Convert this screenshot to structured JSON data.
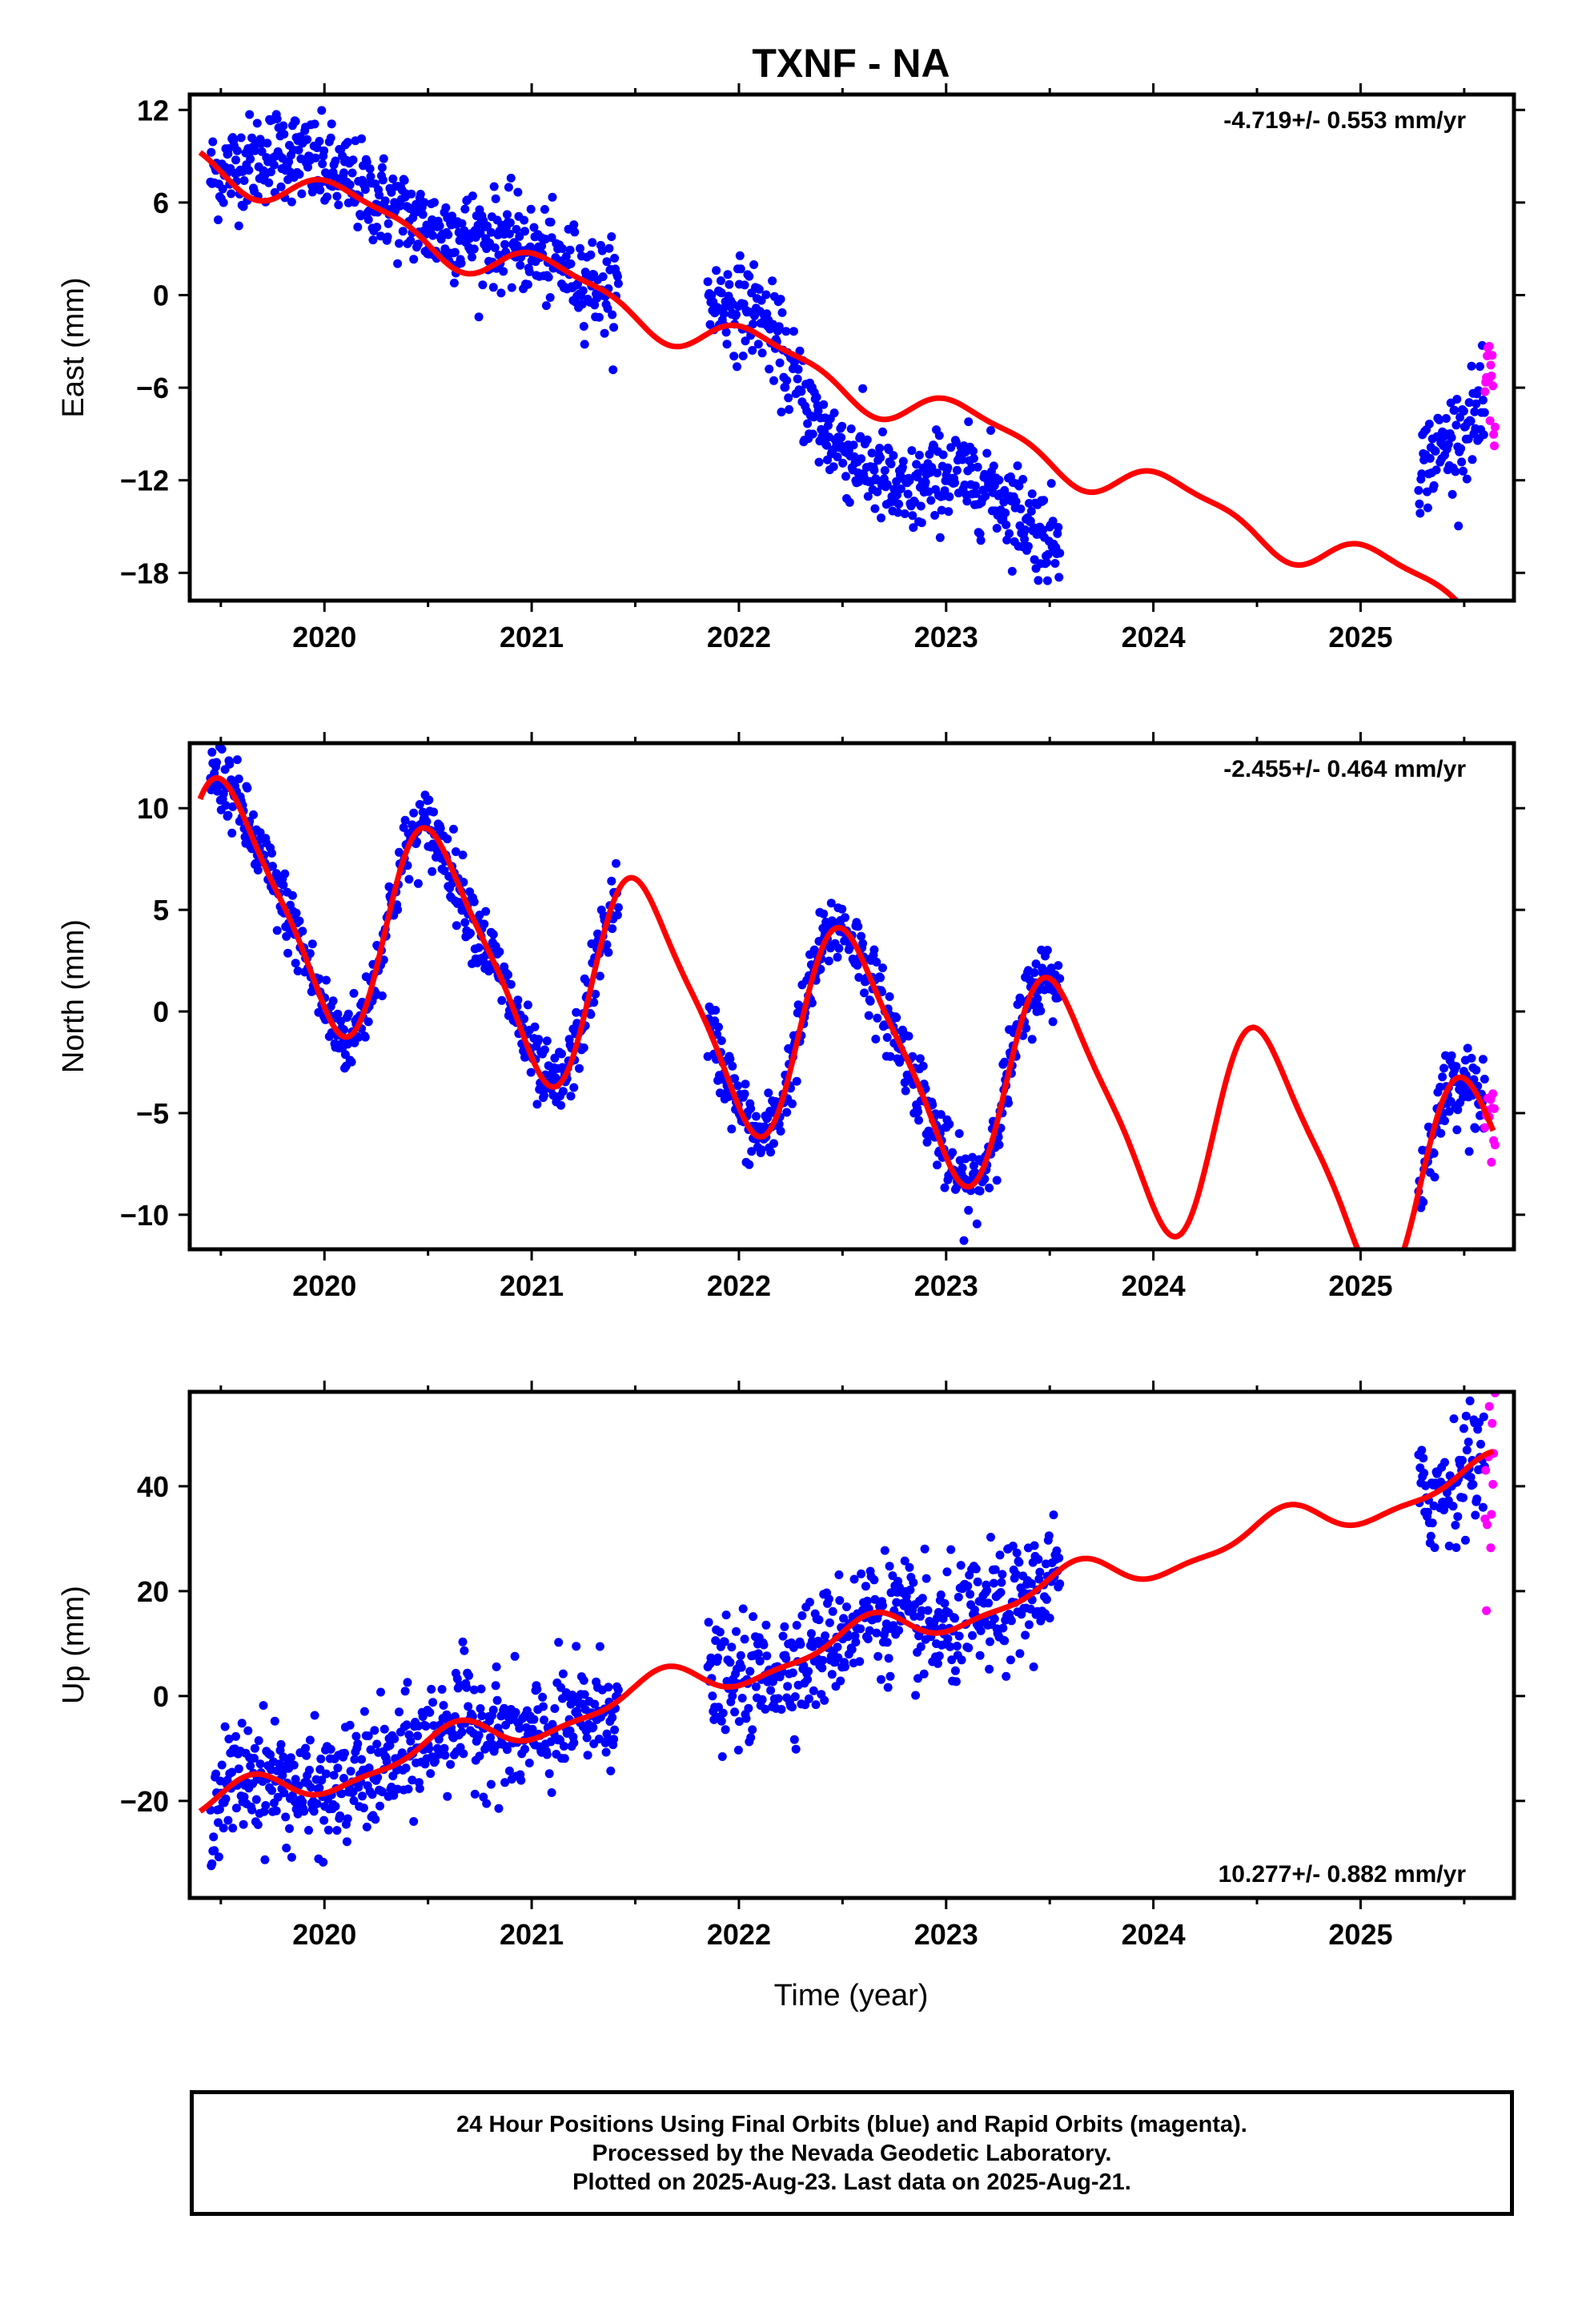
{
  "chart_data": [
    {
      "type": "scatter",
      "title": "TXNF - NA",
      "ylabel": "East (mm)",
      "xlabel": "",
      "rate_text": "-4.719+/- 0.553 mm/yr",
      "xlim": [
        2019.35,
        2025.74
      ],
      "ylim": [
        -19.8,
        13
      ],
      "yticks": [
        12,
        6,
        0,
        -6,
        -12,
        -18
      ],
      "xticks": [
        2020,
        2021,
        2022,
        2023,
        2024,
        2025
      ],
      "rate_mm_per_yr": -4.719,
      "series": [
        {
          "role": "final_orbits",
          "color": "#0000ff",
          "trend": [
            [
              2019.45,
              7.8
            ],
            [
              2019.8,
              9.4
            ],
            [
              2020.1,
              7.5
            ],
            [
              2020.5,
              4.3
            ],
            [
              2020.9,
              3.5
            ],
            [
              2021.4,
              0.2
            ],
            [
              2021.85,
              -0.3
            ],
            [
              2022.1,
              -1.0
            ],
            [
              2022.4,
              -8.8
            ],
            [
              2022.8,
              -13.2
            ],
            [
              2023.0,
              -11.5
            ],
            [
              2023.2,
              -12.2
            ],
            [
              2023.5,
              -15.8
            ],
            [
              2025.3,
              -11.0
            ],
            [
              2025.55,
              -8.0
            ]
          ],
          "segments": [
            [
              2019.45,
              2021.42
            ],
            [
              2021.85,
              2023.55
            ],
            [
              2025.28,
              2025.6
            ]
          ],
          "scatter_mm": 1.5
        },
        {
          "role": "rapid_orbits",
          "color": "#ff00ff",
          "trend": [
            [
              2025.6,
              -6.5
            ],
            [
              2025.65,
              -7.0
            ]
          ],
          "segments": [
            [
              2025.6,
              2025.65
            ]
          ],
          "scatter_mm": 2.5
        },
        {
          "role": "model_fit",
          "color": "#ff0000",
          "rate": -4.719,
          "intercept_2022": -3.2,
          "sin_annual": 0.9,
          "cos_annual": 0.9,
          "sin_semi": -0.3,
          "cos_semi": 0.3
        }
      ]
    },
    {
      "type": "scatter",
      "title": "",
      "ylabel": "North (mm)",
      "xlabel": "",
      "rate_text": "-2.455+/- 0.464 mm/yr",
      "xlim": [
        2019.35,
        2025.74
      ],
      "ylim": [
        -11.7,
        13.2
      ],
      "yticks": [
        10,
        5,
        0,
        -5,
        -10
      ],
      "xticks": [
        2020,
        2021,
        2022,
        2023,
        2024,
        2025
      ],
      "rate_mm_per_yr": -2.455,
      "series": [
        {
          "role": "final_orbits",
          "color": "#0000ff",
          "segments": [
            [
              2019.45,
              2021.42
            ],
            [
              2021.85,
              2023.55
            ],
            [
              2025.28,
              2025.6
            ]
          ],
          "scatter_mm": 0.9
        },
        {
          "role": "rapid_orbits",
          "color": "#ff00ff",
          "segments": [
            [
              2025.6,
              2025.65
            ]
          ],
          "scatter_mm": 1.0
        },
        {
          "role": "model_fit",
          "color": "#ff0000",
          "rate": -2.455,
          "intercept_2022": -0.2,
          "sin_annual": -1.5,
          "cos_annual": -5.0,
          "sin_semi": -1.0,
          "cos_semi": 0.5
        }
      ]
    },
    {
      "type": "scatter",
      "title": "",
      "ylabel": "Up (mm)",
      "xlabel": "Time (year)",
      "rate_text": "10.277+/- 0.882 mm/yr",
      "xlim": [
        2019.35,
        2025.74
      ],
      "ylim": [
        -38.5,
        58
      ],
      "yticks": [
        40,
        20,
        0,
        -20
      ],
      "xticks": [
        2020,
        2021,
        2022,
        2023,
        2024,
        2025
      ],
      "rate_mm_per_yr": 10.277,
      "series": [
        {
          "role": "final_orbits",
          "color": "#0000ff",
          "segments": [
            [
              2019.45,
              2021.42
            ],
            [
              2021.85,
              2023.55
            ],
            [
              2025.28,
              2025.6
            ]
          ],
          "scatter_mm": 5.5
        },
        {
          "role": "rapid_orbits",
          "color": "#ff00ff",
          "segments": [
            [
              2025.6,
              2025.65
            ]
          ],
          "scatter_mm": 9.0
        },
        {
          "role": "model_fit",
          "color": "#ff0000",
          "rate": 10.277,
          "intercept_2022": 5.0,
          "sin_annual": -2.0,
          "cos_annual": -2.5,
          "sin_semi": 1.0,
          "cos_semi": -0.5
        }
      ]
    }
  ],
  "footer": {
    "line1": "24 Hour Positions Using Final Orbits (blue) and Rapid Orbits (magenta).",
    "line2": "Processed by the Nevada Geodetic Laboratory.",
    "line3": "Plotted on 2025-Aug-23. Last data on 2025-Aug-21."
  }
}
